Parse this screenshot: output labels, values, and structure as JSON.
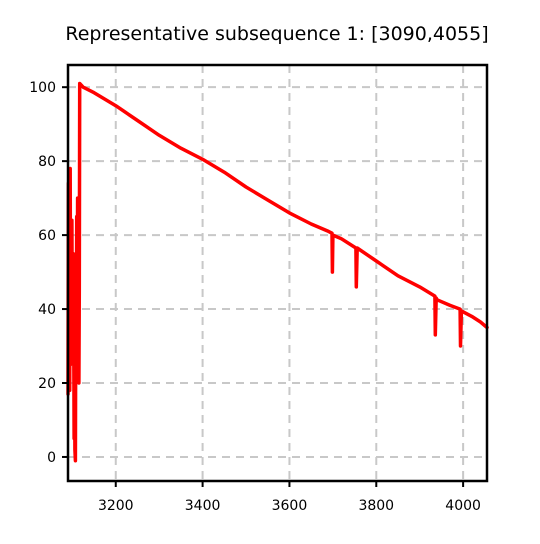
{
  "chart_data": {
    "type": "line",
    "title": "Representative subsequence 1: [3090,4055]",
    "xlabel": "",
    "ylabel": "",
    "xlim": [
      3090,
      4055
    ],
    "ylim": [
      -6.5,
      106
    ],
    "xticks": [
      3200,
      3400,
      3600,
      3800,
      4000
    ],
    "yticks": [
      0,
      20,
      40,
      60,
      80,
      100
    ],
    "grid": true,
    "grid_style": "dashed",
    "legend": "none",
    "colors": {
      "line": "#ff0000",
      "grid": "#c8c8c8",
      "axes": "#000000"
    },
    "series": [
      {
        "color": "#ff0000",
        "points": [
          [
            3090,
            17
          ],
          [
            3091,
            74
          ],
          [
            3092,
            20
          ],
          [
            3093,
            77
          ],
          [
            3094,
            18
          ],
          [
            3095,
            78
          ],
          [
            3096,
            25
          ],
          [
            3097,
            60
          ],
          [
            3098,
            30
          ],
          [
            3099,
            64
          ],
          [
            3100,
            35
          ],
          [
            3101,
            40
          ],
          [
            3102,
            55
          ],
          [
            3103,
            45
          ],
          [
            3104,
            5
          ],
          [
            3105,
            50
          ],
          [
            3106,
            2
          ],
          [
            3107,
            -1
          ],
          [
            3108,
            40
          ],
          [
            3109,
            20
          ],
          [
            3110,
            65
          ],
          [
            3111,
            30
          ],
          [
            3112,
            70
          ],
          [
            3113,
            25
          ],
          [
            3114,
            60
          ],
          [
            3115,
            20
          ],
          [
            3116,
            45
          ],
          [
            3117,
            101
          ],
          [
            3125,
            100
          ],
          [
            3150,
            98.5
          ],
          [
            3200,
            95
          ],
          [
            3250,
            91
          ],
          [
            3300,
            87
          ],
          [
            3350,
            83.5
          ],
          [
            3400,
            80.5
          ],
          [
            3450,
            77
          ],
          [
            3500,
            73
          ],
          [
            3550,
            69.5
          ],
          [
            3600,
            66
          ],
          [
            3650,
            63
          ],
          [
            3690,
            61
          ],
          [
            3698,
            60.5
          ],
          [
            3699,
            50
          ],
          [
            3700,
            60
          ],
          [
            3720,
            59
          ],
          [
            3753,
            56.5
          ],
          [
            3754,
            46
          ],
          [
            3756,
            56.5
          ],
          [
            3800,
            53
          ],
          [
            3850,
            49
          ],
          [
            3900,
            46
          ],
          [
            3935,
            43.5
          ],
          [
            3936,
            33
          ],
          [
            3938,
            43
          ],
          [
            3940,
            42.5
          ],
          [
            3970,
            41
          ],
          [
            3993,
            40
          ],
          [
            3994,
            30
          ],
          [
            3996,
            39.5
          ],
          [
            4020,
            38
          ],
          [
            4040,
            36.5
          ],
          [
            4055,
            35
          ]
        ]
      }
    ]
  }
}
